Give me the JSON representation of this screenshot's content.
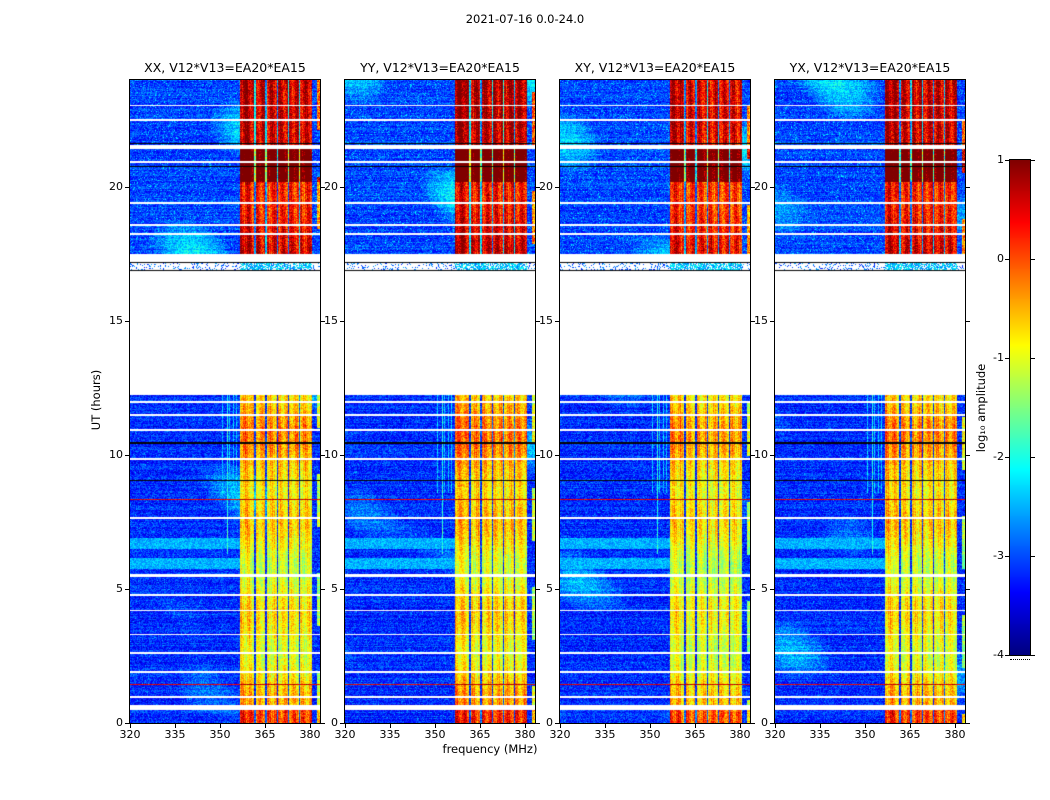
{
  "title": "2021-07-16 0.0-24.0",
  "xlabel": "frequency (MHz)",
  "ylabel": "UT (hours)",
  "colorbar": {
    "label": "log₁₀ amplitude",
    "ticks": [
      1,
      0,
      -1,
      -2,
      -3,
      -4
    ],
    "cmap": "jet",
    "range": [
      -4,
      1
    ]
  },
  "chart_data": {
    "type": "heatmap",
    "title": "2021-07-16 0.0-24.0",
    "date": "2021-07-16",
    "ut_range_hours": [
      0.0,
      24.0
    ],
    "panels": [
      {
        "id": "XX",
        "title": "XX, V12*V13=EA20*EA15"
      },
      {
        "id": "YY",
        "title": "YY, V12*V13=EA20*EA15"
      },
      {
        "id": "XY",
        "title": "XY, V12*V13=EA20*EA15"
      },
      {
        "id": "YX",
        "title": "YX, V12*V13=EA20*EA15"
      }
    ],
    "x_axis": {
      "label": "frequency (MHz)",
      "range_mhz": [
        320,
        383.3
      ],
      "ticks": [
        320,
        335,
        350,
        365,
        380
      ]
    },
    "y_axis": {
      "label": "UT (hours)",
      "range_hours": [
        0,
        24
      ],
      "ticks": [
        0,
        5,
        10,
        15,
        20
      ]
    },
    "color_axis": {
      "label": "log₁₀ amplitude",
      "cmap": "jet",
      "range": [
        -4,
        1
      ],
      "ticks": [
        1,
        0,
        -1,
        -2,
        -3,
        -4
      ]
    },
    "features": {
      "background_log_amp": [
        -3.6,
        -2.8
      ],
      "rfi_band_mhz": [
        356.6,
        380.8
      ],
      "rfi_gap_lines_mhz": [
        361.7,
        365.4,
        369.1,
        372.8,
        376.5
      ],
      "edge_band_mhz": [
        382.2,
        383.3
      ],
      "narrow_line": {
        "mhz": 352.5,
        "hours": [
          6.3,
          12.25
        ]
      },
      "striation_lines_mhz": [
        350.8,
        352.0,
        353.2,
        354.4,
        355.6
      ],
      "striation_hours": [
        8.6,
        12.25
      ],
      "data_gaps_hours": [
        [
          12.25,
          16.88
        ],
        [
          17.2,
          17.5
        ]
      ],
      "faint_strip_hours": [
        16.9,
        17.16
      ],
      "white_rows": [
        [
          0.58,
          0.1
        ],
        [
          0.97,
          0.035
        ],
        [
          1.9,
          0.03
        ],
        [
          2.6,
          0.035
        ],
        [
          3.3,
          0.03
        ],
        [
          4.2,
          0.035
        ],
        [
          4.78,
          0.05
        ],
        [
          5.5,
          0.055
        ],
        [
          7.65,
          0.03
        ],
        [
          9.85,
          0.035
        ],
        [
          10.92,
          0.035
        ],
        [
          11.5,
          0.035
        ],
        [
          11.97,
          0.03
        ],
        [
          18.25,
          0.04
        ],
        [
          18.6,
          0.035
        ],
        [
          19.4,
          0.03
        ],
        [
          20.95,
          0.03
        ],
        [
          21.5,
          0.07
        ],
        [
          22.5,
          0.045
        ],
        [
          23.05,
          0.03
        ]
      ],
      "black_rows": [
        [
          9.05,
          0.025
        ],
        [
          10.45,
          0.045
        ],
        [
          16.88,
          0.022
        ],
        [
          17.18,
          0.022
        ],
        [
          20.78,
          0.016
        ],
        [
          21.62,
          0.02
        ]
      ],
      "red_rows": [
        [
          1.45,
          0.02
        ],
        [
          8.35,
          0.02
        ]
      ],
      "cyan_band_rows_hours": [
        [
          5.75,
          6.15
        ],
        [
          6.5,
          6.9
        ]
      ],
      "strong_rfi_hours": [
        [
          0,
          0.5
        ],
        [
          17.5,
          24.0
        ]
      ],
      "very_strong_rfi_hours": [
        [
          20.2,
          21.45
        ]
      ]
    }
  }
}
